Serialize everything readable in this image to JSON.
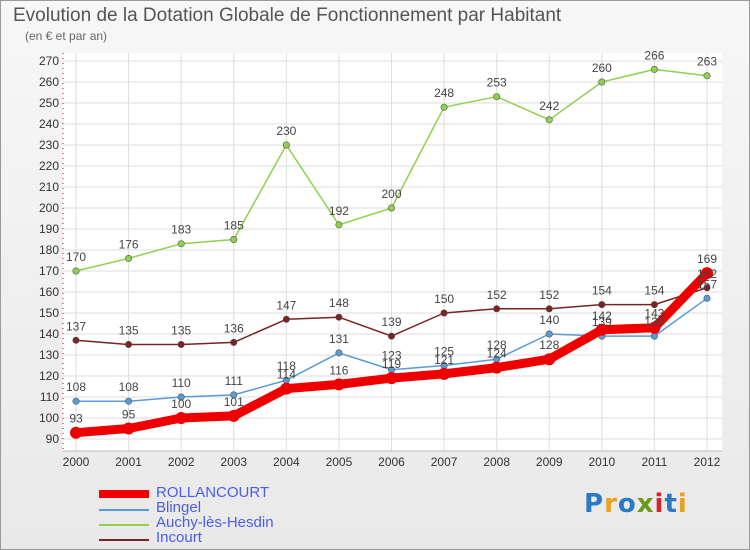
{
  "title": "Evolution de la Dotation Globale de Fonctionnement par Habitant",
  "subtitle": "(en € et par an)",
  "logo": {
    "text": "Proxiti",
    "colors": [
      "#2b78c5",
      "#e8a21e",
      "#2b78c5",
      "#6a9a1a",
      "#d6232a",
      "#2b78c5",
      "#e8a21e"
    ]
  },
  "chart_data": {
    "type": "line",
    "title": "Evolution de la Dotation Globale de Fonctionnement par Habitant",
    "subtitle": "(en € et par an)",
    "xlabel": "",
    "ylabel": "",
    "ylim": [
      90,
      270
    ],
    "yticks": [
      90,
      100,
      110,
      120,
      130,
      140,
      150,
      160,
      170,
      180,
      190,
      200,
      210,
      220,
      230,
      240,
      250,
      260,
      270
    ],
    "grid": true,
    "legend": "bottom-left",
    "categories": [
      "2000",
      "2001",
      "2002",
      "2003",
      "2004",
      "2005",
      "2006",
      "2007",
      "2008",
      "2009",
      "2010",
      "2011",
      "2012"
    ],
    "series": [
      {
        "name": "ROLLANCOURT",
        "color": "#ee0000",
        "values": [
          93,
          95,
          100,
          101,
          114,
          116,
          119,
          121,
          124,
          128,
          142,
          143,
          169
        ]
      },
      {
        "name": "Blingel",
        "color": "#5b9bd5",
        "values": [
          108,
          108,
          110,
          111,
          118,
          131,
          123,
          125,
          128,
          140,
          139,
          139,
          157
        ]
      },
      {
        "name": "Auchy-lès-Hesdin",
        "color": "#8fd14f",
        "values": [
          170,
          176,
          183,
          185,
          230,
          192,
          200,
          248,
          253,
          242,
          260,
          266,
          263
        ]
      },
      {
        "name": "Incourt",
        "color": "#7a2323",
        "values": [
          137,
          135,
          135,
          136,
          147,
          148,
          139,
          150,
          152,
          152,
          154,
          154,
          162
        ]
      }
    ]
  }
}
